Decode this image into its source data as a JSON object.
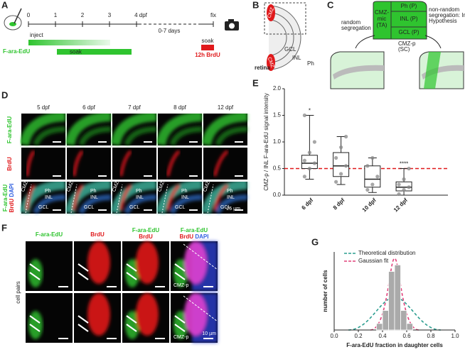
{
  "figure": {
    "A": {
      "letter": "A",
      "ticks": [
        "0",
        "1",
        "2",
        "3",
        "4 dpf"
      ],
      "gap": "0-7 days",
      "fix": "fix",
      "inject": "inject",
      "label_edu": "F-ara-EdU",
      "soak": "soak",
      "soak_brdu": "soak",
      "label_brdu": "12h BrdU"
    },
    "B": {
      "letter": "B",
      "cmz": "CMZ",
      "gcl": "GCL",
      "inl": "INL",
      "ph": "Ph",
      "retina": "retina"
    },
    "C": {
      "letter": "C",
      "ph": "Ph (P)",
      "cmz_mic": [
        "CMZ-",
        "mic",
        "(TA)"
      ],
      "inl": "INL (P)",
      "gcl": "GCL (P)",
      "cmz_p": [
        "CMZ-p",
        "(SC)"
      ],
      "random": [
        "random",
        "segregation"
      ],
      "nonrandom": [
        "non-random",
        "segregation: Immortal Strand",
        "Hypothesis"
      ]
    },
    "D": {
      "letter": "D",
      "columns": [
        "5 dpf",
        "6 dpf",
        "7 dpf",
        "8 dpf",
        "12 dpf"
      ],
      "rows": [
        "F-ara-EdU",
        "BrdU"
      ],
      "merge": [
        "F-ara-EdU",
        "BrdU",
        "DAPI"
      ],
      "regions": [
        "CMZ",
        "Ph",
        "INL",
        "GCL"
      ],
      "scale": "25 µm"
    },
    "F": {
      "letter": "F",
      "headers": [
        "F-ara-EdU",
        "BrdU",
        "F-ara-EdU",
        "BrdU",
        "F-ara-EdU",
        "BrdU",
        "DAPI"
      ],
      "side": "cell pairs",
      "cmz_p": "CMZ-p",
      "scale": "10 µm"
    }
  },
  "chart_data": [
    {
      "type": "box",
      "panel": "E",
      "y_label": "CMZ-p / INL F-ara-EdU signal intensity",
      "categories": [
        "6 dpf",
        "8 dpf",
        "10 dpf",
        "12 dpf"
      ],
      "min": [
        0.3,
        0.2,
        0.05,
        0.0
      ],
      "q1": [
        0.5,
        0.35,
        0.15,
        0.08
      ],
      "median": [
        0.6,
        0.55,
        0.3,
        0.15
      ],
      "q3": [
        0.75,
        0.8,
        0.55,
        0.25
      ],
      "max": [
        1.5,
        1.1,
        0.7,
        0.5
      ],
      "points": [
        [
          0.35,
          0.5,
          0.6,
          0.65,
          0.8,
          1.0,
          1.5
        ],
        [
          0.25,
          0.4,
          0.55,
          0.7,
          0.9,
          1.1
        ],
        [
          0.1,
          0.2,
          0.35,
          0.55,
          0.7
        ],
        [
          0.02,
          0.1,
          0.15,
          0.2,
          0.3,
          0.5
        ]
      ],
      "annotations": [
        "*",
        null,
        null,
        "****"
      ],
      "reference_line": 0.5,
      "reference_color": "#e0191b",
      "color": "#888888",
      "ylim": [
        0,
        2
      ],
      "yticks": [
        {
          "value": 0,
          "label": "0.0"
        },
        {
          "value": 0.5,
          "label": "0.5"
        },
        {
          "value": 1,
          "label": "1.0"
        },
        {
          "value": 1.5,
          "label": "1.5"
        },
        {
          "value": 2,
          "label": "2.0"
        }
      ]
    },
    {
      "type": "histogram",
      "panel": "G",
      "x_label": "F-ara-EdU fraction in daughter cells",
      "y_label": "number of cells",
      "bins": [
        0.35,
        0.4,
        0.45,
        0.5,
        0.55,
        0.6,
        0.65
      ],
      "counts": [
        1,
        3,
        9,
        10,
        3,
        1
      ],
      "color": "#aaaaaa",
      "xlim": [
        0,
        1
      ],
      "xticks": [
        {
          "value": 0,
          "label": "0.0"
        },
        {
          "value": 0.2,
          "label": "0.2"
        },
        {
          "value": 0.4,
          "label": "0.4"
        },
        {
          "value": 0.6,
          "label": "0.6"
        },
        {
          "value": 0.8,
          "label": "0.8"
        },
        {
          "value": 1,
          "label": "1.0"
        }
      ],
      "ylim": [
        0,
        12
      ],
      "legend": [
        {
          "name": "Theoretical distribution",
          "color": "#2a9d8f"
        },
        {
          "name": "Gaussian fit",
          "color": "#e0407a"
        }
      ]
    }
  ]
}
